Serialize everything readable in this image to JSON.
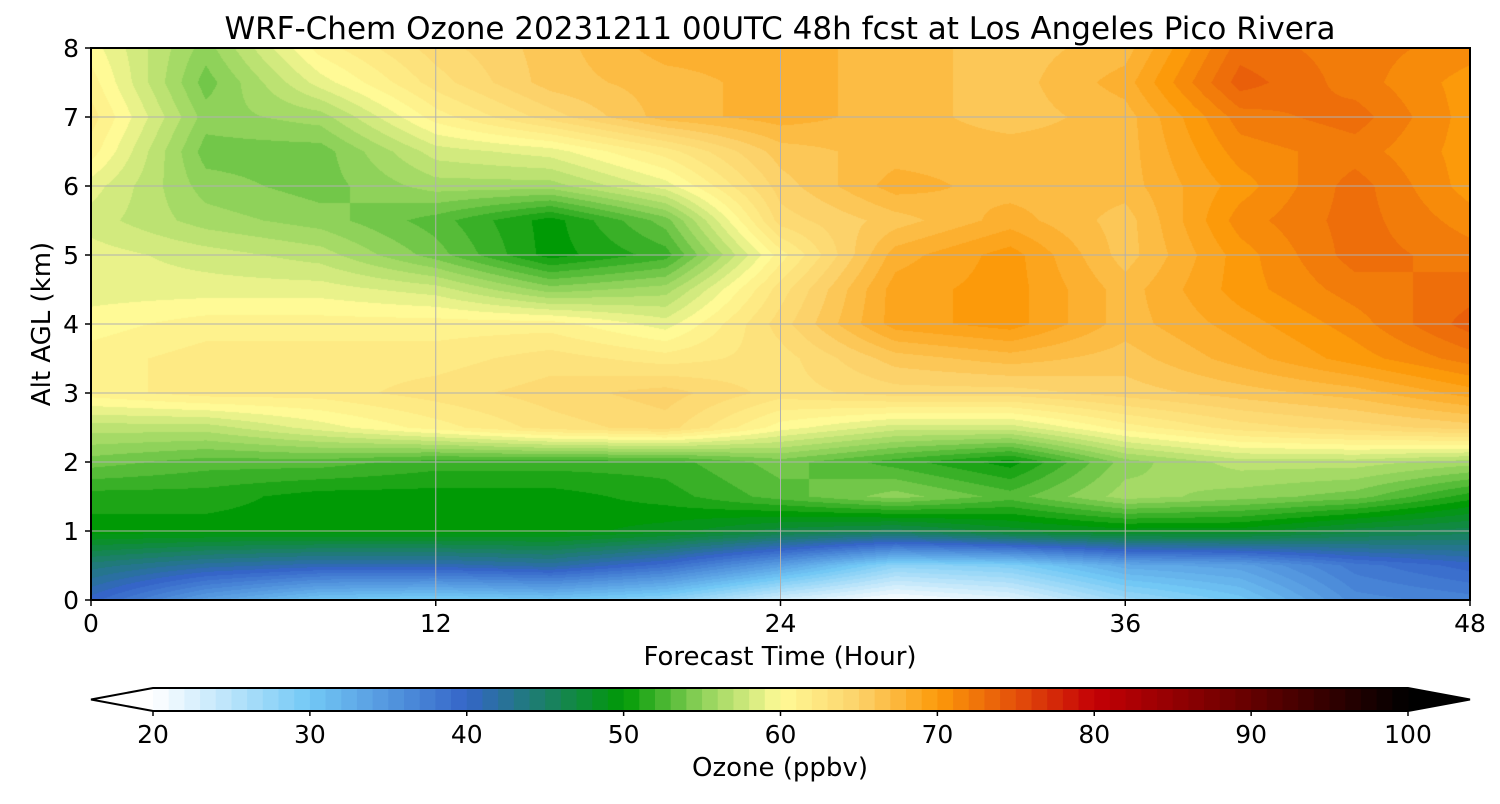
{
  "chart_data": {
    "type": "heatmap",
    "title": "WRF-Chem Ozone  20231211 00UTC 48h fcst at Los Angeles Pico Rivera",
    "xlabel": "Forecast Time (Hour)",
    "ylabel": "Alt AGL (km)",
    "xlim": [
      0,
      48
    ],
    "ylim": [
      0,
      8
    ],
    "x_ticks": [
      "0",
      "12",
      "24",
      "36",
      "48"
    ],
    "y_ticks": [
      "0",
      "1",
      "2",
      "3",
      "4",
      "5",
      "6",
      "7",
      "8"
    ],
    "grid": true,
    "x": [
      0,
      4,
      8,
      12,
      16,
      20,
      24,
      28,
      32,
      36,
      40,
      44,
      48
    ],
    "y": [
      0,
      0.5,
      1,
      1.5,
      2,
      2.5,
      3,
      3.5,
      4,
      4.5,
      5,
      5.5,
      6,
      6.5,
      7,
      7.5,
      8
    ],
    "z": [
      [
        40,
        34,
        30,
        29,
        30,
        28,
        23,
        20,
        22,
        27,
        30,
        36,
        37
      ],
      [
        44,
        42,
        41,
        41,
        42,
        39,
        34,
        28,
        29,
        33,
        34,
        38,
        40
      ],
      [
        50,
        50,
        50,
        50,
        50,
        49,
        47,
        46,
        48,
        49,
        49,
        47,
        46
      ],
      [
        51,
        51,
        50,
        50,
        50,
        51,
        53,
        55,
        53,
        56,
        55,
        54,
        51
      ],
      [
        54,
        53,
        53,
        52,
        52,
        52,
        54,
        52,
        50,
        55,
        57,
        57,
        56
      ],
      [
        57,
        57,
        59,
        61,
        63,
        64,
        60,
        58,
        58,
        61,
        63,
        64,
        65
      ],
      [
        61,
        62,
        62,
        63,
        64,
        65,
        63,
        64,
        64,
        65,
        66,
        67,
        69
      ],
      [
        61,
        62,
        62,
        62,
        63,
        62,
        63,
        66,
        67,
        66,
        68,
        70,
        72
      ],
      [
        60,
        61,
        61,
        61,
        61,
        59,
        64,
        69,
        70,
        67,
        69,
        71,
        74
      ],
      [
        59,
        59,
        59,
        58,
        55,
        56,
        63,
        69,
        70,
        67,
        70,
        72,
        73
      ],
      [
        59,
        58,
        57,
        54,
        50,
        52,
        61,
        68,
        70,
        66,
        70,
        73,
        72
      ],
      [
        58,
        56,
        55,
        53,
        50,
        54,
        64,
        66,
        68,
        66,
        71,
        73,
        71
      ],
      [
        59,
        55,
        54,
        56,
        56,
        59,
        65,
        68,
        67,
        67,
        70,
        73,
        70
      ],
      [
        61,
        54,
        54,
        58,
        59,
        62,
        66,
        67,
        67,
        67,
        71,
        72,
        70
      ],
      [
        62,
        55,
        56,
        61,
        64,
        67,
        68,
        67,
        66,
        67,
        72,
        73,
        70
      ],
      [
        61,
        54,
        59,
        63,
        66,
        67,
        68,
        67,
        66,
        68,
        74,
        72,
        70
      ],
      [
        60,
        55,
        61,
        64,
        66,
        68,
        68,
        67,
        66,
        67,
        73,
        72,
        71
      ]
    ],
    "colorbar": {
      "label": "Ozone  (ppbv)",
      "min": 20,
      "max": 100,
      "ticks": [
        "20",
        "30",
        "40",
        "50",
        "60",
        "70",
        "80",
        "90",
        "100"
      ],
      "extend": "both",
      "stops": [
        [
          20,
          "#ffffff"
        ],
        [
          30,
          "#72c8f5"
        ],
        [
          40,
          "#3565c8"
        ],
        [
          50,
          "#009a05"
        ],
        [
          55,
          "#8fd25a"
        ],
        [
          60,
          "#fffa96"
        ],
        [
          65,
          "#fcd26a"
        ],
        [
          70,
          "#fc9a0a"
        ],
        [
          75,
          "#e4500a"
        ],
        [
          80,
          "#c40005"
        ],
        [
          90,
          "#640000"
        ],
        [
          100,
          "#000000"
        ]
      ]
    }
  }
}
